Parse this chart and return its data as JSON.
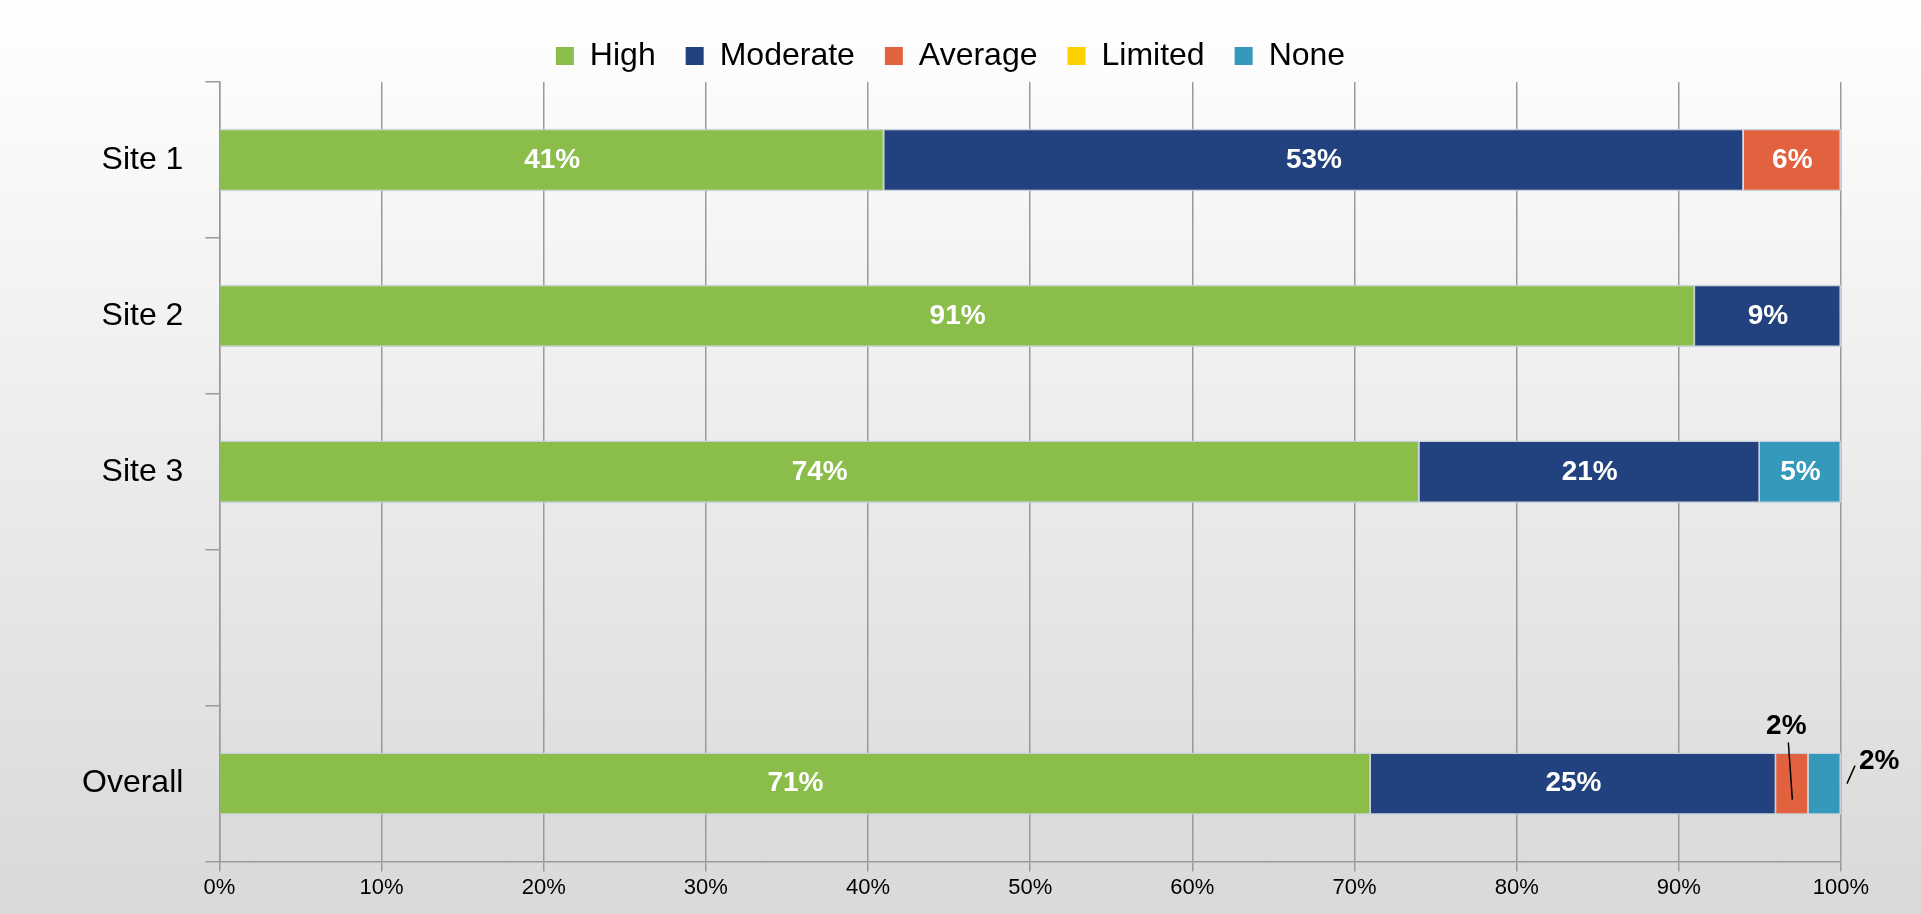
{
  "chart_data": {
    "type": "bar",
    "orientation": "horizontal",
    "stacked": true,
    "categories": [
      "Site 1",
      "Site 2",
      "Site 3",
      null,
      "Overall"
    ],
    "series": [
      {
        "name": "High",
        "color": "#8bbd4a",
        "values": [
          41,
          91,
          74,
          null,
          71
        ],
        "value_labels": [
          "41%",
          "91%",
          "74%",
          null,
          "71%"
        ]
      },
      {
        "name": "Moderate",
        "color": "#22427f",
        "values": [
          53,
          9,
          21,
          null,
          25
        ],
        "value_labels": [
          "53%",
          "9%",
          "21%",
          null,
          "25%"
        ]
      },
      {
        "name": "Average",
        "color": "#e2613f",
        "values": [
          6,
          null,
          null,
          null,
          2
        ],
        "value_labels": [
          "6%",
          null,
          null,
          null,
          "2%"
        ]
      },
      {
        "name": "Limited",
        "color": "#ffd000",
        "values": [
          null,
          null,
          null,
          null,
          null
        ]
      },
      {
        "name": "None",
        "color": "#3499bb",
        "values": [
          null,
          null,
          5,
          null,
          2
        ],
        "value_labels": [
          null,
          null,
          "5%",
          null,
          "2%"
        ]
      }
    ],
    "xlim": [
      0,
      100
    ],
    "xticks": [
      {
        "value": 0,
        "label": "0%"
      },
      {
        "value": 10,
        "label": "10%"
      },
      {
        "value": 20,
        "label": "20%"
      },
      {
        "value": 30,
        "label": "30%"
      },
      {
        "value": 40,
        "label": "40%"
      },
      {
        "value": 50,
        "label": "50%"
      },
      {
        "value": 60,
        "label": "60%"
      },
      {
        "value": 70,
        "label": "70%"
      },
      {
        "value": 80,
        "label": "80%"
      },
      {
        "value": 90,
        "label": "90%"
      },
      {
        "value": 100,
        "label": "100%"
      }
    ],
    "grid": "x",
    "legend": "top"
  }
}
